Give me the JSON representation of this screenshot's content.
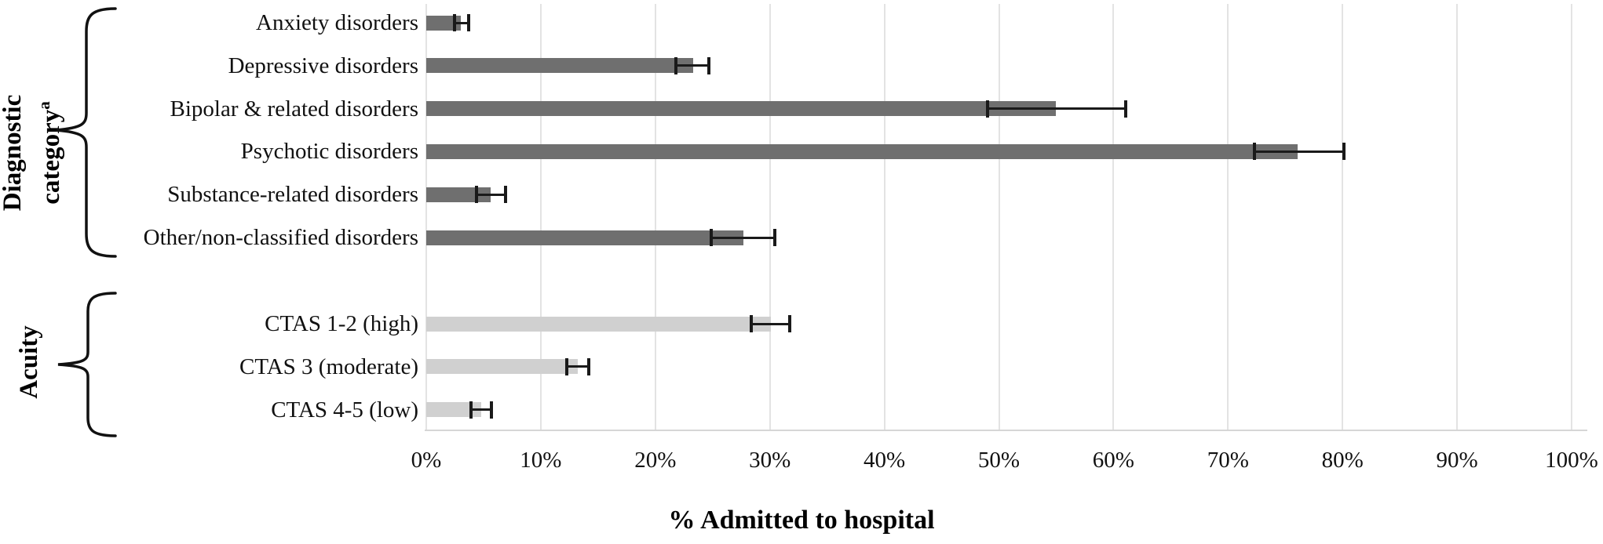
{
  "figure": {
    "background": "#ffffff"
  },
  "colors": {
    "bar_dark": "#6f6f6f",
    "bar_light": "#d0d0d0",
    "gridline": "#e3e3e3",
    "axis_line": "#d6d6d6",
    "error_bar": "#1a1a1a",
    "text": "#111111"
  },
  "chart_data": {
    "type": "bar",
    "orientation": "horizontal",
    "xlabel": "% Admitted to hospital",
    "xlim": [
      0,
      100
    ],
    "x_ticks": [
      "0%",
      "10%",
      "20%",
      "30%",
      "40%",
      "50%",
      "60%",
      "70%",
      "80%",
      "90%",
      "100%"
    ],
    "grid": "vertical-light-gray",
    "error_bars": "95% CI whiskers with end caps",
    "groups": [
      {
        "label_line1": "Diagnostic",
        "label_line2": "category",
        "label_sup": "a",
        "bar_color": "#6f6f6f",
        "rows": [
          {
            "label": "Anxiety disorders",
            "value": 3.0,
            "ci_low": 2.5,
            "ci_high": 3.7
          },
          {
            "label": "Depressive disorders",
            "value": 23.3,
            "ci_low": 21.8,
            "ci_high": 24.7
          },
          {
            "label": "Bipolar & related disorders",
            "value": 55.0,
            "ci_low": 49.0,
            "ci_high": 61.1
          },
          {
            "label": "Psychotic disorders",
            "value": 76.1,
            "ci_low": 72.3,
            "ci_high": 80.1
          },
          {
            "label": "Substance-related disorders",
            "value": 5.6,
            "ci_low": 4.4,
            "ci_high": 6.9
          },
          {
            "label": "Other/non-classified disorders",
            "value": 27.7,
            "ci_low": 24.9,
            "ci_high": 30.4
          }
        ]
      },
      {
        "label_line1": "Acuity",
        "label_line2": "",
        "label_sup": "",
        "bar_color": "#d0d0d0",
        "rows": [
          {
            "label": "CTAS 1-2 (high)",
            "value": 30.1,
            "ci_low": 28.4,
            "ci_high": 31.7
          },
          {
            "label": "CTAS 3 (moderate)",
            "value": 13.2,
            "ci_low": 12.3,
            "ci_high": 14.2
          },
          {
            "label": "CTAS 4-5 (low)",
            "value": 4.8,
            "ci_low": 3.9,
            "ci_high": 5.7
          }
        ]
      }
    ]
  }
}
